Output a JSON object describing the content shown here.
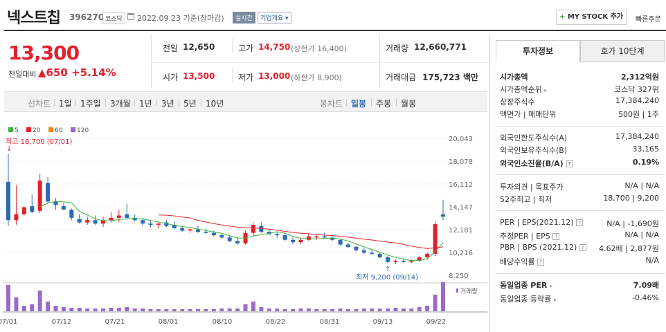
{
  "header": {
    "title": "넥스트칩",
    "code": "396270",
    "market": "코스닥",
    "date": "2022.09.23 기준(장마감)",
    "live": "실시간",
    "company": "기업개요",
    "mystock_label": "MY STOCK 추가",
    "quick_order": "빠른주문"
  },
  "price": {
    "current": "13,300",
    "change_label": "전일대비",
    "change": "▲650",
    "change_pct": "+5.14%",
    "prev_label": "전일",
    "prev": "12,650",
    "open_label": "시가",
    "open": "13,500",
    "high_label": "고가",
    "high": "14,750",
    "upper_limit": "(상한가 16,400)",
    "low_label": "저가",
    "low": "13,000",
    "lower_limit": "(하한가 8,900)",
    "volume_label": "거래량",
    "volume": "12,660,771",
    "amount_label": "거래대금",
    "amount": "175,723",
    "amount_unit": "백만"
  },
  "period_bar": {
    "line_label": "선차트",
    "line_periods": [
      "1일",
      "1주일",
      "3개월",
      "1년",
      "3년",
      "5년",
      "10년"
    ],
    "candle_label": "봉차트",
    "candle_periods": [
      "일봉",
      "주봉",
      "월봉"
    ]
  },
  "chart": {
    "legend": [
      "5",
      "20",
      "60",
      "120"
    ],
    "legend_colors": [
      "#3bb43b",
      "#e4202d",
      "#f08a1e",
      "#9b6bc7"
    ],
    "y_ticks": [
      "20,043",
      "18,078",
      "16,112",
      "14,147",
      "12,181",
      "10,216",
      "8,250"
    ],
    "x_ticks": [
      "07/01",
      "07/12",
      "07/21",
      "08/01",
      "08/10",
      "08/22",
      "08/31",
      "09/13",
      "09/22"
    ],
    "high_note": "최고 18,700 (07/01)",
    "low_note": "최저 9,200 (09/14)",
    "volume_label": "거래량"
  },
  "chart_data": {
    "type": "candlestick",
    "ylim": [
      8250,
      20043
    ],
    "series": [
      {
        "name": "일봉",
        "ohlc": [
          [
            16300,
            18700,
            12500,
            13000
          ],
          [
            13000,
            16000,
            12600,
            13500
          ],
          [
            13500,
            14200,
            13400,
            14100
          ],
          [
            14200,
            15200,
            13600,
            13700
          ],
          [
            13800,
            17000,
            13600,
            16400
          ],
          [
            16200,
            16700,
            14400,
            14600
          ],
          [
            14600,
            14900,
            13900,
            14300
          ],
          [
            14200,
            14500,
            13900,
            13900
          ],
          [
            13900,
            14000,
            13000,
            13200
          ],
          [
            13100,
            13500,
            12700,
            12800
          ],
          [
            12800,
            13300,
            12600,
            13000
          ],
          [
            13000,
            13400,
            12600,
            12700
          ],
          [
            12700,
            13300,
            12400,
            13000
          ],
          [
            13000,
            13700,
            12800,
            13200
          ],
          [
            13200,
            13900,
            12800,
            13400
          ],
          [
            13500,
            14400,
            13100,
            13200
          ],
          [
            13200,
            13500,
            12900,
            13000
          ],
          [
            13000,
            13200,
            12500,
            12700
          ],
          [
            12700,
            12900,
            12400,
            12600
          ],
          [
            12600,
            12800,
            12300,
            12700
          ],
          [
            12800,
            13000,
            12400,
            12500
          ],
          [
            12600,
            12900,
            12200,
            12300
          ],
          [
            12300,
            12500,
            12000,
            12100
          ],
          [
            12100,
            12400,
            11900,
            12200
          ],
          [
            12200,
            12500,
            11900,
            12000
          ],
          [
            12000,
            12300,
            11800,
            11900
          ],
          [
            11900,
            12100,
            11600,
            11700
          ],
          [
            11700,
            11900,
            11400,
            11500
          ],
          [
            11500,
            11700,
            11100,
            11200
          ],
          [
            11200,
            11500,
            10900,
            11000
          ],
          [
            11000,
            12100,
            10900,
            11900
          ],
          [
            11900,
            12800,
            11600,
            12600
          ],
          [
            12500,
            12800,
            11900,
            12000
          ],
          [
            12000,
            12200,
            11700,
            11800
          ],
          [
            11800,
            12000,
            11500,
            11700
          ],
          [
            11700,
            11900,
            11200,
            11300
          ],
          [
            11300,
            11500,
            10900,
            11100
          ],
          [
            11100,
            11500,
            10900,
            11300
          ],
          [
            11300,
            11800,
            11200,
            11600
          ],
          [
            11500,
            11700,
            11300,
            11600
          ],
          [
            11600,
            11900,
            11400,
            11500
          ],
          [
            11500,
            11600,
            11200,
            11300
          ],
          [
            11300,
            11400,
            10800,
            10900
          ],
          [
            10900,
            11000,
            10600,
            10700
          ],
          [
            10700,
            10800,
            10300,
            10400
          ],
          [
            10400,
            10600,
            10100,
            10200
          ],
          [
            10200,
            10400,
            10000,
            10100
          ],
          [
            10100,
            10200,
            9700,
            9800
          ],
          [
            9800,
            9900,
            9300,
            9400
          ],
          [
            9400,
            9600,
            9200,
            9500
          ],
          [
            9500,
            9700,
            9300,
            9400
          ],
          [
            9400,
            9600,
            9300,
            9500
          ],
          [
            9500,
            9900,
            9400,
            9800
          ],
          [
            9800,
            10200,
            9600,
            10100
          ],
          [
            10100,
            12900,
            9900,
            12650
          ],
          [
            13500,
            14750,
            13000,
            13300
          ]
        ]
      }
    ],
    "x_labels": [
      "07/01",
      "07/12",
      "07/21",
      "08/01",
      "08/10",
      "08/22",
      "08/31",
      "09/13",
      "09/22"
    ]
  },
  "invest": {
    "tab_active": "투자정보",
    "tab_other": "호가 10단계",
    "rows1": [
      {
        "l": "시가총액",
        "r": "2,312억원"
      },
      {
        "l": "시가총액순위",
        "r": "코스닥 327위"
      },
      {
        "l": "상장주식수",
        "r": "17,384,240"
      },
      {
        "l": "액면가 | 매매단위",
        "r": "500원 | 1주"
      }
    ],
    "rows2": [
      {
        "l": "외국인한도주식수(A)",
        "r": "17,384,240"
      },
      {
        "l": "외국인보유주식수(B)",
        "r": "33,165"
      },
      {
        "l": "외국인소진율(B/A)",
        "r": "0.19%"
      }
    ],
    "rows3": [
      {
        "l": "투자의견 | 목표주가",
        "r": "N/A | N/A"
      },
      {
        "l": "52주최고 | 최저",
        "r": "18,700 | 9,200"
      }
    ],
    "per_label": "PER | EPS(2021.12)",
    "per_a": "N/A",
    "per_b": "-1,690원",
    "eper_label": "추정PER | EPS",
    "eper_a": "N/A",
    "eper_b": "N/A",
    "pbr_label": "PBR | BPS (2021.12)",
    "pbr_a": "4.62배",
    "pbr_b": "2,877원",
    "div_label": "배당수익률",
    "div_val": "N/A",
    "same_per_label": "동일업종 PER",
    "same_per": "7.09배",
    "same_rate_label": "동일업종 등락률",
    "same_rate": "-0.46%"
  }
}
